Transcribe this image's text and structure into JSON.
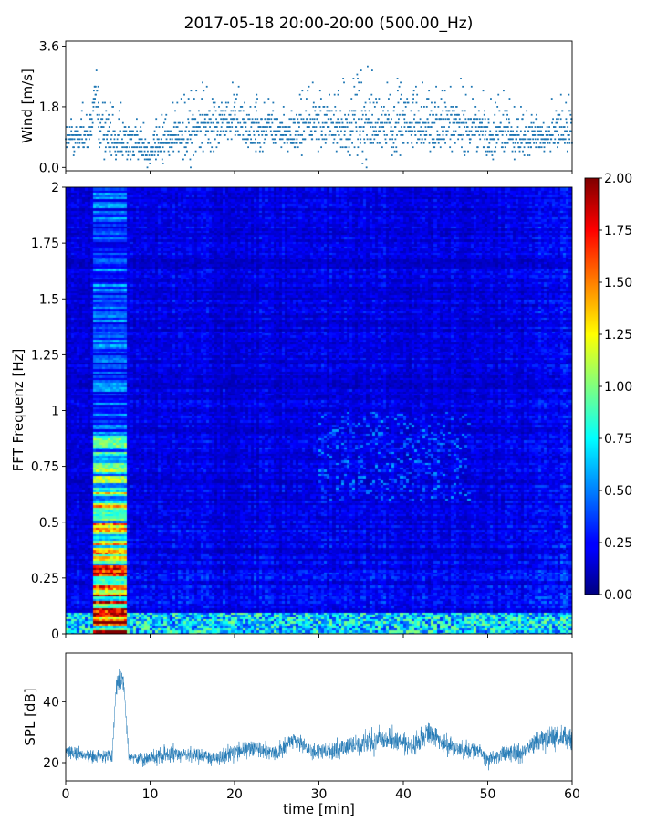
{
  "figure": {
    "title": "2017-05-18 20:00-20:00 (500.00_Hz)"
  },
  "chart_data": [
    {
      "type": "scatter",
      "name": "wind-panel",
      "ylabel": "Wind [m/s]",
      "xlabel": "",
      "xlim": [
        0,
        60
      ],
      "ylim": [
        -0.1,
        3.75
      ],
      "yticks": [
        0.0,
        1.8,
        3.6
      ],
      "ytick_labels": [
        "0.0",
        "1.8",
        "3.6"
      ],
      "color": "#1f77b4",
      "sample_count": 1800,
      "envelope": {
        "x": [
          0,
          3,
          3.5,
          4,
          6,
          7,
          9,
          10,
          13,
          15,
          17,
          20,
          22,
          24,
          26,
          28,
          30,
          33,
          35,
          37,
          40,
          43,
          45,
          48,
          50,
          52,
          54,
          57,
          60
        ],
        "typical": [
          0.8,
          1.0,
          2.4,
          1.2,
          0.8,
          0.9,
          0.6,
          0.5,
          0.9,
          1.0,
          1.3,
          1.4,
          1.1,
          1.2,
          1.0,
          1.1,
          1.4,
          1.1,
          1.2,
          1.3,
          1.2,
          1.1,
          1.3,
          1.2,
          0.9,
          1.0,
          0.8,
          0.9,
          1.1
        ],
        "peak": [
          1.6,
          2.0,
          3.6,
          2.6,
          1.8,
          2.0,
          1.4,
          1.3,
          2.0,
          2.2,
          2.7,
          2.6,
          2.4,
          2.4,
          2.0,
          2.2,
          2.8,
          2.5,
          3.2,
          2.6,
          2.5,
          2.4,
          2.7,
          2.6,
          2.0,
          2.2,
          1.7,
          1.9,
          2.3
        ]
      }
    },
    {
      "type": "heatmap",
      "name": "spectrogram",
      "xlabel": "",
      "ylabel": "FFT Frequenz [Hz]",
      "xlim": [
        0,
        60
      ],
      "ylim": [
        0,
        2
      ],
      "yticks": [
        0,
        0.25,
        0.5,
        0.75,
        1,
        1.25,
        1.5,
        1.75,
        2
      ],
      "ytick_labels": [
        "0",
        "0.25",
        "0.5",
        "0.75",
        "1",
        "1.25",
        "1.5",
        "1.75",
        "2"
      ],
      "colormap": "jet",
      "colorbar": {
        "range": [
          0.0,
          2.0
        ],
        "ticks": [
          0.0,
          0.25,
          0.5,
          0.75,
          1.0,
          1.25,
          1.5,
          1.75,
          2.0
        ],
        "tick_labels": [
          "0.00",
          "0.25",
          "0.50",
          "0.75",
          "1.00",
          "1.25",
          "1.50",
          "1.75",
          "2.00"
        ]
      },
      "time_bins": 180,
      "freq_bins": 200,
      "background_level": 0.18,
      "hot_segment": {
        "x_range": [
          3.2,
          7.3
        ],
        "low_freq_level": 1.5,
        "high_freq_level": 0.45
      },
      "low_freq_band": {
        "freq_max": 0.1,
        "level": 0.8
      },
      "mid_activity": {
        "x_range": [
          30,
          48
        ],
        "freq_range": [
          0.6,
          1.0
        ],
        "level": 0.45
      }
    },
    {
      "type": "line",
      "name": "spl-panel",
      "xlabel": "time [min]",
      "ylabel": "SPL [dB]",
      "xlim": [
        0,
        60
      ],
      "ylim": [
        14,
        56
      ],
      "xticks": [
        0,
        10,
        20,
        30,
        40,
        50,
        60
      ],
      "xtick_labels": [
        "0",
        "10",
        "20",
        "30",
        "40",
        "50",
        "60"
      ],
      "yticks": [
        20,
        40
      ],
      "ytick_labels": [
        "20",
        "40"
      ],
      "color": "#1f77b4",
      "sample_count": 2400,
      "envelope": {
        "x": [
          0,
          2,
          4,
          5.5,
          6,
          6.8,
          7.5,
          9,
          10,
          12,
          15,
          18,
          20,
          22,
          25,
          27,
          29,
          31,
          33,
          35,
          37,
          39,
          41,
          43,
          45,
          47,
          49,
          50,
          52,
          54,
          56,
          58,
          60
        ],
        "mean": [
          24,
          22.5,
          22,
          22,
          46,
          48,
          22,
          21.5,
          21.5,
          23,
          22.5,
          21.5,
          24,
          24.5,
          23,
          28,
          24,
          23.5,
          25,
          26,
          27.5,
          27.5,
          25,
          30,
          25.5,
          24,
          24,
          21,
          23.5,
          23,
          27,
          28.5,
          27
        ],
        "spread": [
          5,
          4,
          4,
          4,
          7,
          7,
          4,
          4,
          4,
          5,
          4.5,
          4,
          5,
          5,
          4.5,
          5,
          4.5,
          5,
          5.5,
          6,
          6.5,
          6.5,
          5.5,
          6,
          5.5,
          5,
          4.5,
          4,
          5,
          5,
          6,
          7,
          6
        ]
      }
    }
  ]
}
